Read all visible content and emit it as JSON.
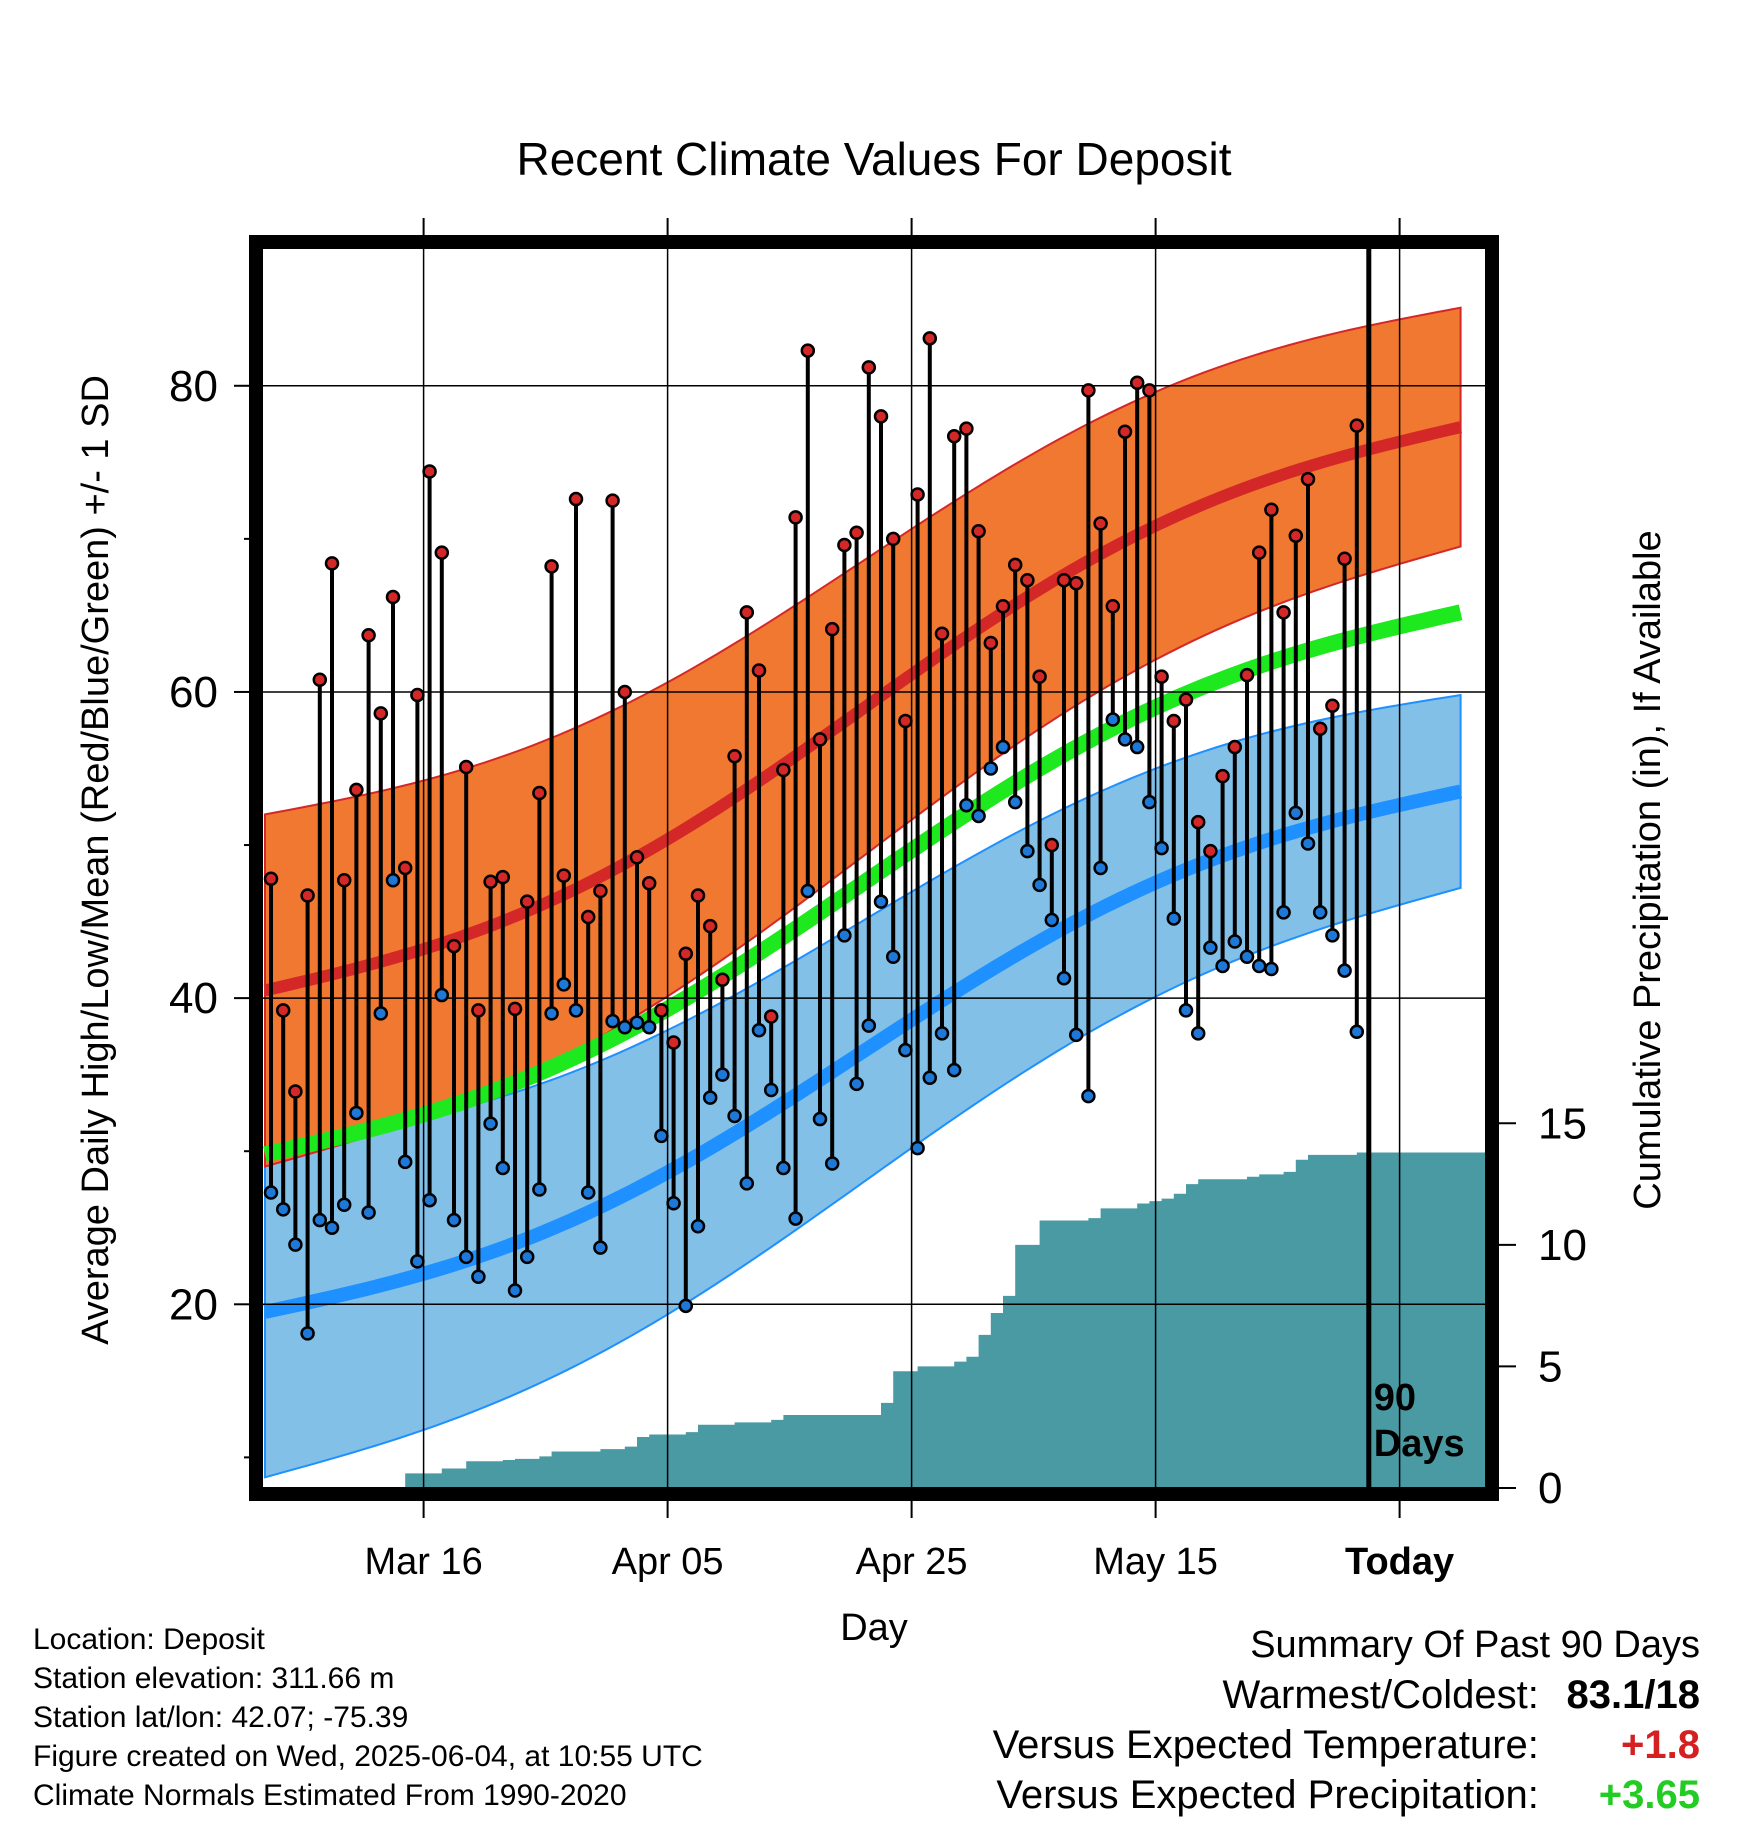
{
  "chart_data": {
    "type": "line",
    "title": "Recent Climate Values For Deposit",
    "xlabel": "Day",
    "ylabel_left": "Average Daily High/Low/Mean (Red/Blue/Green) +/- 1 SD",
    "ylabel_right": "Cumulative Precipitation (in), If Available",
    "x_tick_labels": [
      "Mar 16",
      "Apr 05",
      "Apr 25",
      "May 15",
      "Today"
    ],
    "y_left_ticks": [
      20,
      40,
      60,
      80
    ],
    "y_right_ticks": [
      0,
      5,
      10,
      15
    ],
    "ylim_left": [
      8,
      89
    ],
    "ylim_right": [
      0,
      51
    ],
    "today_marker_label": "90\nDays",
    "normals": {
      "high_mean_start": 40.5,
      "high_mean_end": 77.3,
      "high_sd_start": 11.5,
      "high_sd_end": 7.8,
      "low_mean_start": 19.5,
      "low_mean_end": 53.5,
      "low_sd_start": 10.8,
      "low_sd_end": 6.3,
      "mean_start": 29.8,
      "mean_end": 65.2
    },
    "series": [
      {
        "name": "High",
        "values": [
          47.8,
          39.2,
          33.9,
          46.7,
          60.8,
          68.4,
          47.7,
          53.6,
          63.7,
          58.6,
          66.2,
          48.5,
          59.8,
          74.4,
          69.1,
          43.4,
          55.1,
          39.2,
          47.6,
          47.9,
          39.3,
          46.3,
          53.4,
          68.2,
          48.0,
          72.6,
          45.3,
          47.0,
          72.5,
          60.0,
          49.2,
          47.5,
          39.2,
          37.1,
          42.9,
          46.7,
          44.7,
          41.2,
          55.8,
          65.2,
          61.4,
          38.8,
          54.9,
          71.4,
          82.3,
          56.9,
          64.1,
          69.6,
          70.4,
          81.2,
          78.0,
          70.0,
          58.1,
          72.9,
          83.1,
          63.8,
          76.7,
          77.2,
          70.5,
          63.2,
          65.6,
          68.3,
          67.3,
          61.0,
          50.0,
          67.3,
          67.1,
          79.7,
          71.0,
          65.6,
          77.0,
          80.2,
          79.7,
          61.0,
          58.1,
          59.5,
          51.5,
          49.6,
          54.5,
          56.4,
          61.1,
          69.1,
          71.9,
          65.2,
          70.2,
          73.9,
          57.6,
          59.1,
          68.7,
          77.4
        ]
      },
      {
        "name": "Low",
        "values": [
          27.3,
          26.2,
          23.9,
          18.1,
          25.5,
          25.0,
          26.5,
          32.5,
          26.0,
          39.0,
          47.7,
          29.3,
          22.8,
          26.8,
          40.2,
          25.5,
          23.1,
          21.8,
          31.8,
          28.9,
          20.9,
          23.1,
          27.5,
          39.0,
          40.9,
          39.2,
          27.3,
          23.7,
          38.5,
          38.1,
          38.4,
          38.1,
          31.0,
          26.6,
          19.9,
          25.1,
          33.5,
          35.0,
          32.3,
          27.9,
          37.9,
          34.0,
          28.9,
          25.6,
          47.0,
          32.1,
          29.2,
          44.1,
          34.4,
          38.2,
          46.3,
          42.7,
          36.6,
          30.2,
          34.8,
          37.7,
          35.3,
          52.6,
          51.9,
          55.0,
          56.4,
          52.8,
          49.6,
          47.4,
          45.1,
          41.3,
          37.6,
          33.6,
          48.5,
          58.2,
          56.9,
          56.4,
          52.8,
          49.8,
          45.2,
          39.2,
          37.7,
          43.3,
          42.1,
          43.7,
          42.7,
          42.1,
          41.9,
          45.6,
          52.1,
          50.1,
          45.6,
          44.1,
          41.8,
          37.8
        ]
      },
      {
        "name": "Precipitation",
        "values": [
          0,
          0,
          0,
          0,
          0,
          0,
          0,
          0,
          0,
          0,
          0,
          0.6,
          0.6,
          0.6,
          0.8,
          0.8,
          1.1,
          1.1,
          1.1,
          1.15,
          1.2,
          1.2,
          1.3,
          1.5,
          1.5,
          1.5,
          1.5,
          1.6,
          1.6,
          1.7,
          2.1,
          2.2,
          2.2,
          2.2,
          2.3,
          2.6,
          2.6,
          2.6,
          2.7,
          2.7,
          2.7,
          2.8,
          3.0,
          3.0,
          3.0,
          3.0,
          3.0,
          3.0,
          3.0,
          3.0,
          3.5,
          4.8,
          4.8,
          5.0,
          5.0,
          5.0,
          5.2,
          5.4,
          6.3,
          7.2,
          7.9,
          10.0,
          10.0,
          11.0,
          11.0,
          11.0,
          11.0,
          11.1,
          11.5,
          11.5,
          11.5,
          11.7,
          11.8,
          11.9,
          12.1,
          12.5,
          12.7,
          12.7,
          12.7,
          12.7,
          12.8,
          12.9,
          12.9,
          13.0,
          13.5,
          13.7,
          13.7,
          13.7,
          13.7,
          13.8
        ]
      }
    ]
  },
  "info": {
    "location": "Location: Deposit",
    "elevation": "Station elevation: 311.66 m",
    "latlon": "Station lat/lon: 42.07; -75.39",
    "created": "Figure created on Wed, 2025-06-04, at 10:55 UTC",
    "normals": "Climate Normals Estimated From 1990-2020"
  },
  "summary": {
    "title": "Summary Of Past 90 Days",
    "warm_cold_label": "Warmest/Coldest:",
    "warm_cold_value": "83.1/18",
    "temp_label": "Versus Expected Temperature:",
    "temp_value": "+1.8",
    "precip_label": "Versus Expected Precipitation:",
    "precip_value": "+3.65"
  },
  "colors": {
    "high_band": "#f07830",
    "high_line": "#d42828",
    "low_band": "#82c0e8",
    "low_line": "#1e90ff",
    "mean_line": "#1ee81e",
    "precip_fill": "#4a9aa4",
    "high_dot": "#d42828",
    "low_dot": "#1e78d8"
  }
}
